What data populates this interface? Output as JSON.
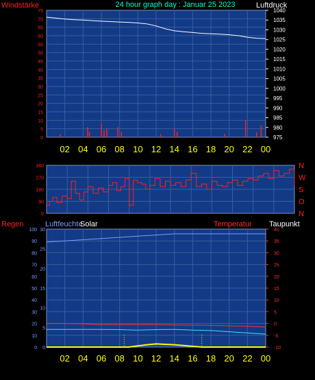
{
  "header": {
    "title": "24 hour graph day : Januar 25 2023",
    "left_label": "Windstärke",
    "right_label": "Luftdruck"
  },
  "x_ticks": [
    "02",
    "04",
    "06",
    "08",
    "10",
    "12",
    "14",
    "16",
    "18",
    "20",
    "22",
    "00"
  ],
  "panel1": {
    "wind_ticks": [
      "0",
      "5",
      "10",
      "15",
      "20",
      "25",
      "30",
      "35",
      "40",
      "45",
      "50",
      "55",
      "60",
      "65",
      "70",
      "75"
    ],
    "pressure_ticks": [
      "975",
      "980",
      "985",
      "990",
      "995",
      "1000",
      "1005",
      "1010",
      "1015",
      "1020",
      "1025",
      "1030",
      "1035",
      "1040"
    ]
  },
  "panel2": {
    "dir_ticks": [
      "0",
      "90",
      "180",
      "270",
      "360"
    ],
    "compass": [
      "N",
      "W",
      "S",
      "O",
      "N"
    ]
  },
  "panel3": {
    "labels": {
      "rain": "Regen",
      "humidity": "Luftfeuchte",
      "solar": "Solar",
      "temperature": "Temperatur",
      "dewpoint": "Taupunkt"
    },
    "humidity_ticks": [
      "0",
      "10",
      "20",
      "30",
      "40",
      "50",
      "60",
      "70",
      "80",
      "90",
      "100"
    ],
    "rain_ticks": [
      "0",
      "5",
      "10",
      "15",
      "20",
      "25",
      "30"
    ],
    "temp_ticks": [
      "-10",
      "-5",
      "0",
      "5",
      "10",
      "15",
      "20",
      "25",
      "30",
      "35",
      "40"
    ]
  },
  "colors": {
    "plot_bg": "#123a86",
    "grid": "#3a5f9e",
    "pressure": "#ffffff",
    "wind": "#ff2020",
    "direction": "#ff2020",
    "humidity": "#7f9cff",
    "temperature": "#ff3030",
    "dewpoint": "#40e0ff",
    "solar": "#ffff00",
    "title": "#00ffcc",
    "axis_red": "#ff2020",
    "axis_white": "#ffffff",
    "axis_yellow": "#ffff00"
  },
  "chart_data": [
    {
      "type": "line",
      "title": "24 hour graph day : Januar 25 2023",
      "x_unit": "hour",
      "x_range": [
        0,
        24
      ],
      "series": [
        {
          "name": "Luftdruck",
          "axis": "right",
          "ylim": [
            975,
            1040
          ],
          "x": [
            0,
            1,
            2,
            3,
            4,
            5,
            6,
            7,
            8,
            9,
            10,
            11,
            12,
            13,
            14,
            15,
            16,
            17,
            18,
            19,
            20,
            21,
            22,
            23,
            24
          ],
          "values": [
            1036.5,
            1036,
            1035.5,
            1035.2,
            1035,
            1034.7,
            1034.4,
            1034.2,
            1034,
            1033.8,
            1033.5,
            1033,
            1032,
            1030.5,
            1029.5,
            1029,
            1028.6,
            1028.2,
            1028,
            1027.8,
            1027.5,
            1027,
            1026.2,
            1025.7,
            1025.5
          ]
        },
        {
          "name": "Windstärke",
          "axis": "left",
          "ylim": [
            0,
            75
          ],
          "x": [
            1.5,
            4.5,
            4.7,
            6.0,
            6.3,
            6.6,
            7.8,
            8.2,
            12.5,
            14.0,
            14.3,
            19.5,
            21.8,
            23.0,
            23.5
          ],
          "values": [
            2,
            6,
            3,
            8,
            4,
            5,
            6,
            3,
            2,
            5,
            3,
            2,
            10,
            3,
            7
          ]
        }
      ]
    },
    {
      "type": "line",
      "x_range": [
        0,
        24
      ],
      "ylim": [
        0,
        360
      ],
      "series": [
        {
          "name": "direction",
          "x": [
            0,
            0.3,
            0.6,
            1,
            1.5,
            2,
            2.4,
            2.8,
            3.2,
            3.6,
            4,
            4.5,
            5,
            5.5,
            6,
            6.4,
            6.8,
            7.2,
            7.6,
            8,
            8.4,
            8.8,
            9.2,
            9.6,
            10,
            10.5,
            11,
            11.5,
            12,
            12.5,
            13,
            13.5,
            14,
            14.5,
            15,
            15.5,
            16,
            16.5,
            17,
            17.5,
            18,
            18.5,
            19,
            19.5,
            20,
            20.5,
            21,
            21.5,
            22,
            22.5,
            23,
            23.5,
            24
          ],
          "values": [
            60,
            90,
            120,
            80,
            130,
            110,
            240,
            150,
            100,
            160,
            200,
            150,
            190,
            160,
            210,
            230,
            170,
            200,
            260,
            60,
            250,
            230,
            220,
            180,
            210,
            260,
            200,
            240,
            210,
            230,
            200,
            250,
            300,
            200,
            220,
            180,
            240,
            210,
            200,
            230,
            250,
            210,
            240,
            260,
            250,
            280,
            300,
            260,
            320,
            280,
            300,
            330,
            200
          ]
        }
      ]
    },
    {
      "type": "line",
      "x_range": [
        0,
        24
      ],
      "series": [
        {
          "name": "Luftfeuchte",
          "axis": "left",
          "ylim": [
            0,
            100
          ],
          "x": [
            0,
            2,
            4,
            6,
            8,
            10,
            12,
            14,
            16,
            18,
            20,
            22,
            24
          ],
          "values": [
            89,
            90,
            91,
            92,
            93,
            94,
            95,
            96,
            96,
            96,
            96,
            96,
            96
          ]
        },
        {
          "name": "Temperatur",
          "axis": "right",
          "ylim": [
            -10,
            40
          ],
          "x": [
            0,
            2,
            4,
            6,
            8,
            10,
            12,
            14,
            16,
            18,
            20,
            22,
            24
          ],
          "values": [
            0,
            0,
            -0.2,
            -0.5,
            -0.5,
            -0.5,
            -0.5,
            -0.6,
            -0.7,
            -0.8,
            -1,
            -1.2,
            -1.5
          ]
        },
        {
          "name": "Taupunkt",
          "axis": "right",
          "ylim": [
            -10,
            40
          ],
          "x": [
            0,
            2,
            4,
            6,
            8,
            10,
            12,
            14,
            16,
            18,
            20,
            22,
            24
          ],
          "values": [
            -2.5,
            -2.5,
            -2.5,
            -2.5,
            -2.6,
            -2.8,
            -2.6,
            -2.5,
            -2.8,
            -3,
            -3.5,
            -4,
            -4.5
          ]
        },
        {
          "name": "Solar",
          "axis": "rain-scale",
          "ylim": [
            0,
            30
          ],
          "x": [
            0,
            8.5,
            9,
            10,
            11,
            12,
            13,
            14,
            15,
            16,
            17,
            24
          ],
          "values": [
            0,
            0,
            0,
            0.3,
            0.6,
            0.8,
            0.7,
            0.6,
            0.4,
            0.2,
            0,
            0
          ]
        }
      ]
    }
  ]
}
